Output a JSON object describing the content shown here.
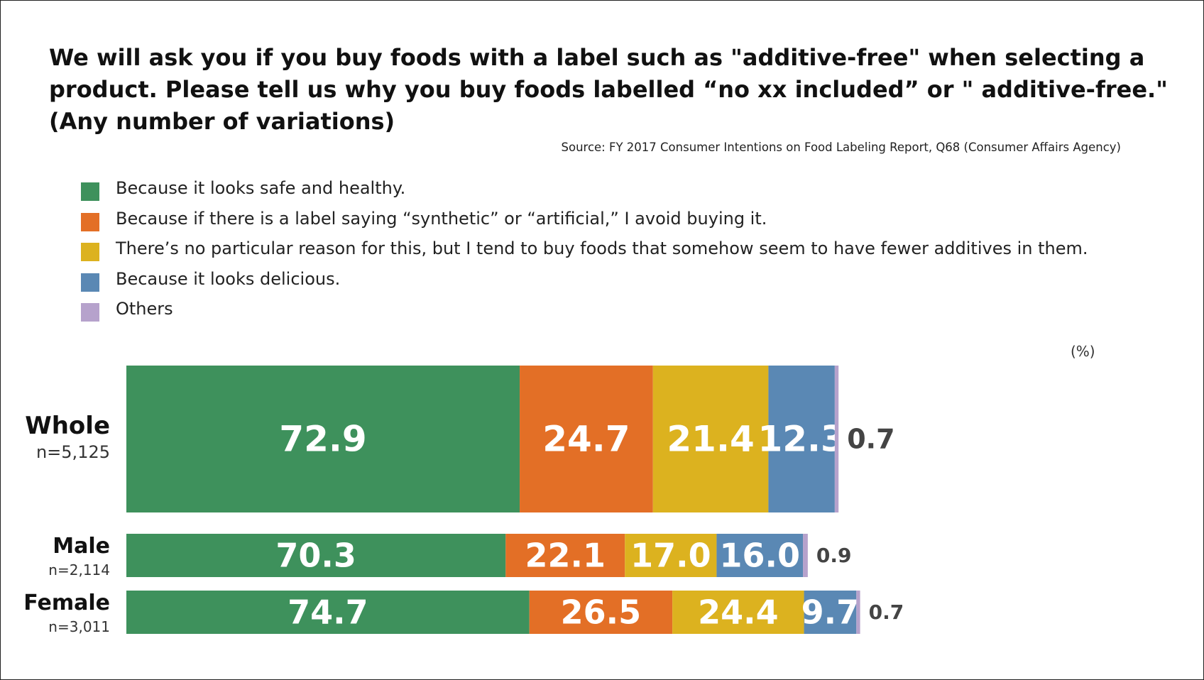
{
  "title_lines": [
    "We will ask you if you buy foods with a label such as \"additive-free\" when selecting a",
    "product. Please tell us why you buy foods labelled “no xx included” or \" additive-free.\"",
    "(Any number of variations)"
  ],
  "source": "Source: FY 2017 Consumer Intentions on Food Labeling Report, Q68 (Consumer Affairs Agency)",
  "chart_data": {
    "type": "bar",
    "orientation": "horizontal",
    "stacked": true,
    "unit_label": "(%)",
    "categories": [
      "Whole",
      "Male",
      "Female"
    ],
    "sample_sizes": [
      "n=5,125",
      "n=2,114",
      "n=3,011"
    ],
    "series": [
      {
        "name": "Because it looks safe and healthy.",
        "color": "#3e915c",
        "values": [
          72.9,
          70.3,
          74.7
        ]
      },
      {
        "name": "Because if there is a label saying “synthetic” or “artificial,” I avoid buying it.",
        "color": "#e36f26",
        "values": [
          24.7,
          22.1,
          26.5
        ]
      },
      {
        "name": "There’s no particular reason for this, but I tend to buy foods that somehow seem to have fewer additives in them.",
        "color": "#dcb21f",
        "values": [
          21.4,
          17.0,
          24.4
        ]
      },
      {
        "name": "Because it looks delicious.",
        "color": "#5a88b4",
        "values": [
          12.3,
          16.0,
          9.7
        ]
      },
      {
        "name": "Others",
        "color": "#b6a2cc",
        "values": [
          0.7,
          0.9,
          0.7
        ]
      }
    ],
    "legend_position": "top-left",
    "grid": false
  }
}
